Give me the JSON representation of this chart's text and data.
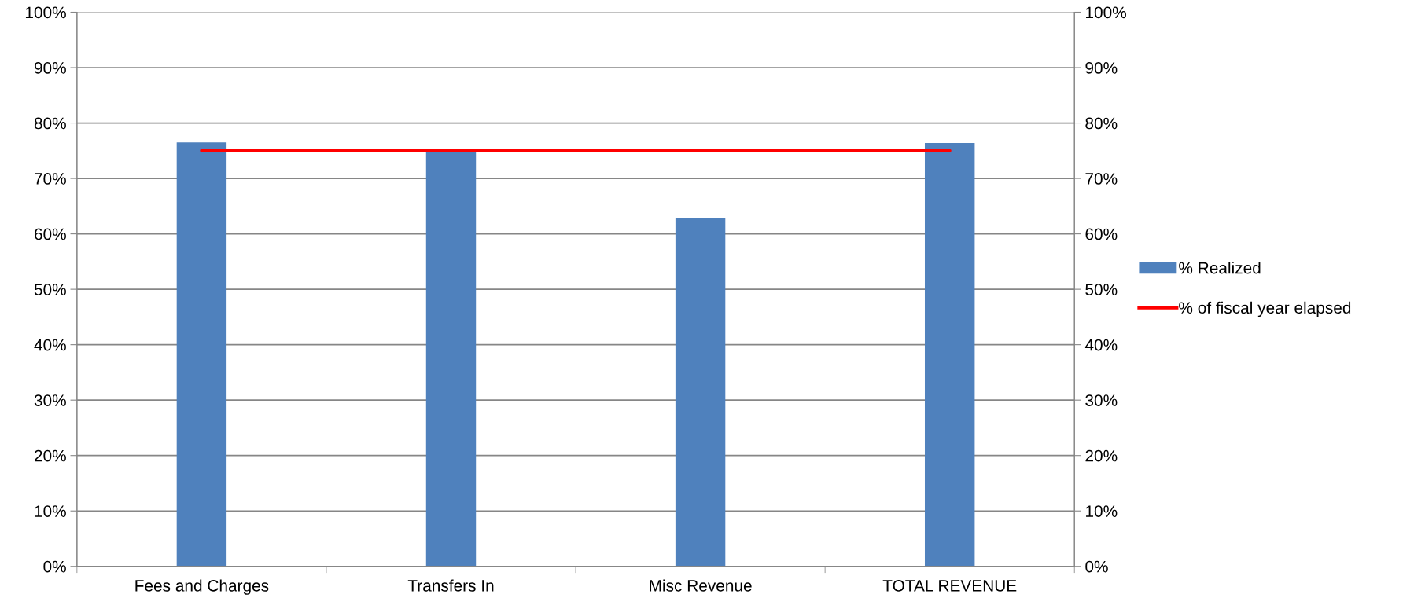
{
  "chart_data": {
    "type": "bar",
    "categories": [
      "Fees and Charges",
      "Transfers In",
      "Misc Revenue",
      "TOTAL REVENUE"
    ],
    "series": [
      {
        "name": "% Realized",
        "color": "#4f81bd",
        "values": [
          76.5,
          75.0,
          62.8,
          76.4
        ]
      },
      {
        "name": "% of fiscal year elapsed",
        "color": "#ff0000",
        "type": "line",
        "values": [
          75,
          75,
          75,
          75
        ]
      }
    ],
    "ylim": [
      0,
      100
    ],
    "yticks": [
      {
        "value": 0,
        "label": "0%"
      },
      {
        "value": 10,
        "label": "10%"
      },
      {
        "value": 20,
        "label": "20%"
      },
      {
        "value": 30,
        "label": "30%"
      },
      {
        "value": 40,
        "label": "40%"
      },
      {
        "value": 50,
        "label": "50%"
      },
      {
        "value": 60,
        "label": "60%"
      },
      {
        "value": 70,
        "label": "70%"
      },
      {
        "value": 80,
        "label": "80%"
      },
      {
        "value": 90,
        "label": "90%"
      },
      {
        "value": 100,
        "label": "100%"
      }
    ],
    "y2lim": [
      0,
      100
    ],
    "y2ticks": [
      {
        "value": 0,
        "label": "0%"
      },
      {
        "value": 10,
        "label": "10%"
      },
      {
        "value": 20,
        "label": "20%"
      },
      {
        "value": 30,
        "label": "30%"
      },
      {
        "value": 40,
        "label": "40%"
      },
      {
        "value": 50,
        "label": "50%"
      },
      {
        "value": 60,
        "label": "60%"
      },
      {
        "value": 70,
        "label": "70%"
      },
      {
        "value": 80,
        "label": "80%"
      },
      {
        "value": 90,
        "label": "90%"
      },
      {
        "value": 100,
        "label": "100%"
      }
    ],
    "grid": "y",
    "legend": "right",
    "marker": "none"
  }
}
